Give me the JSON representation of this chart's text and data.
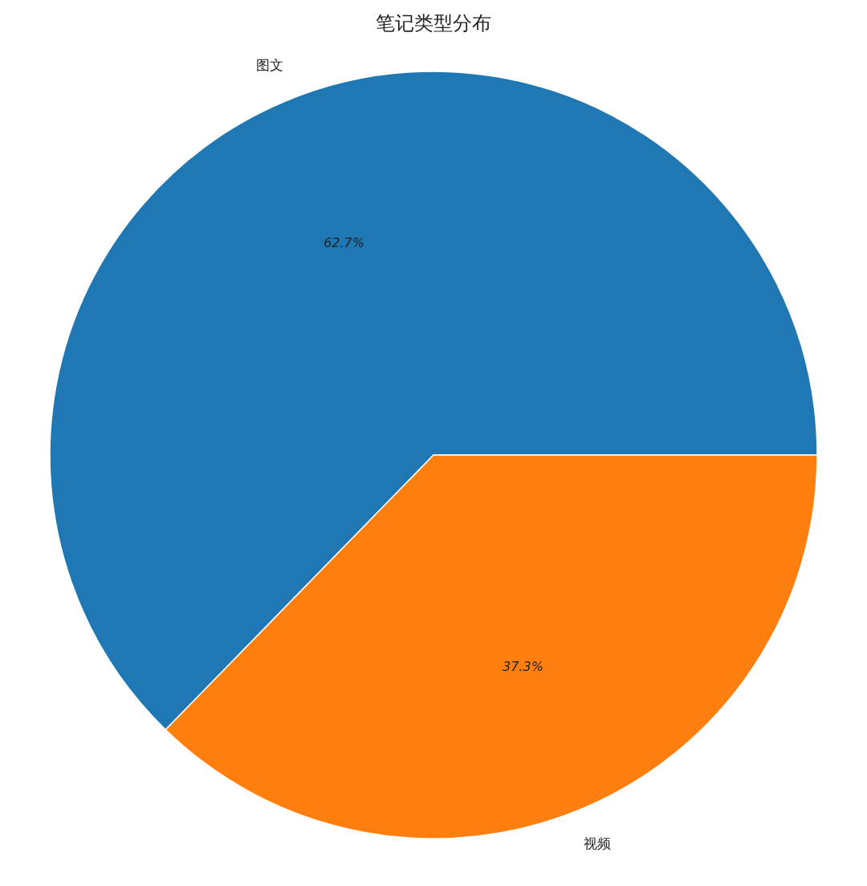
{
  "chart_data": {
    "type": "pie",
    "title": "笔记类型分布",
    "categories": [
      "图文",
      "视频"
    ],
    "values": [
      62.7,
      37.3
    ],
    "colors": [
      "#1f77b4",
      "#ff7f0e"
    ],
    "value_labels": [
      "62.7%",
      "37.3%"
    ]
  }
}
